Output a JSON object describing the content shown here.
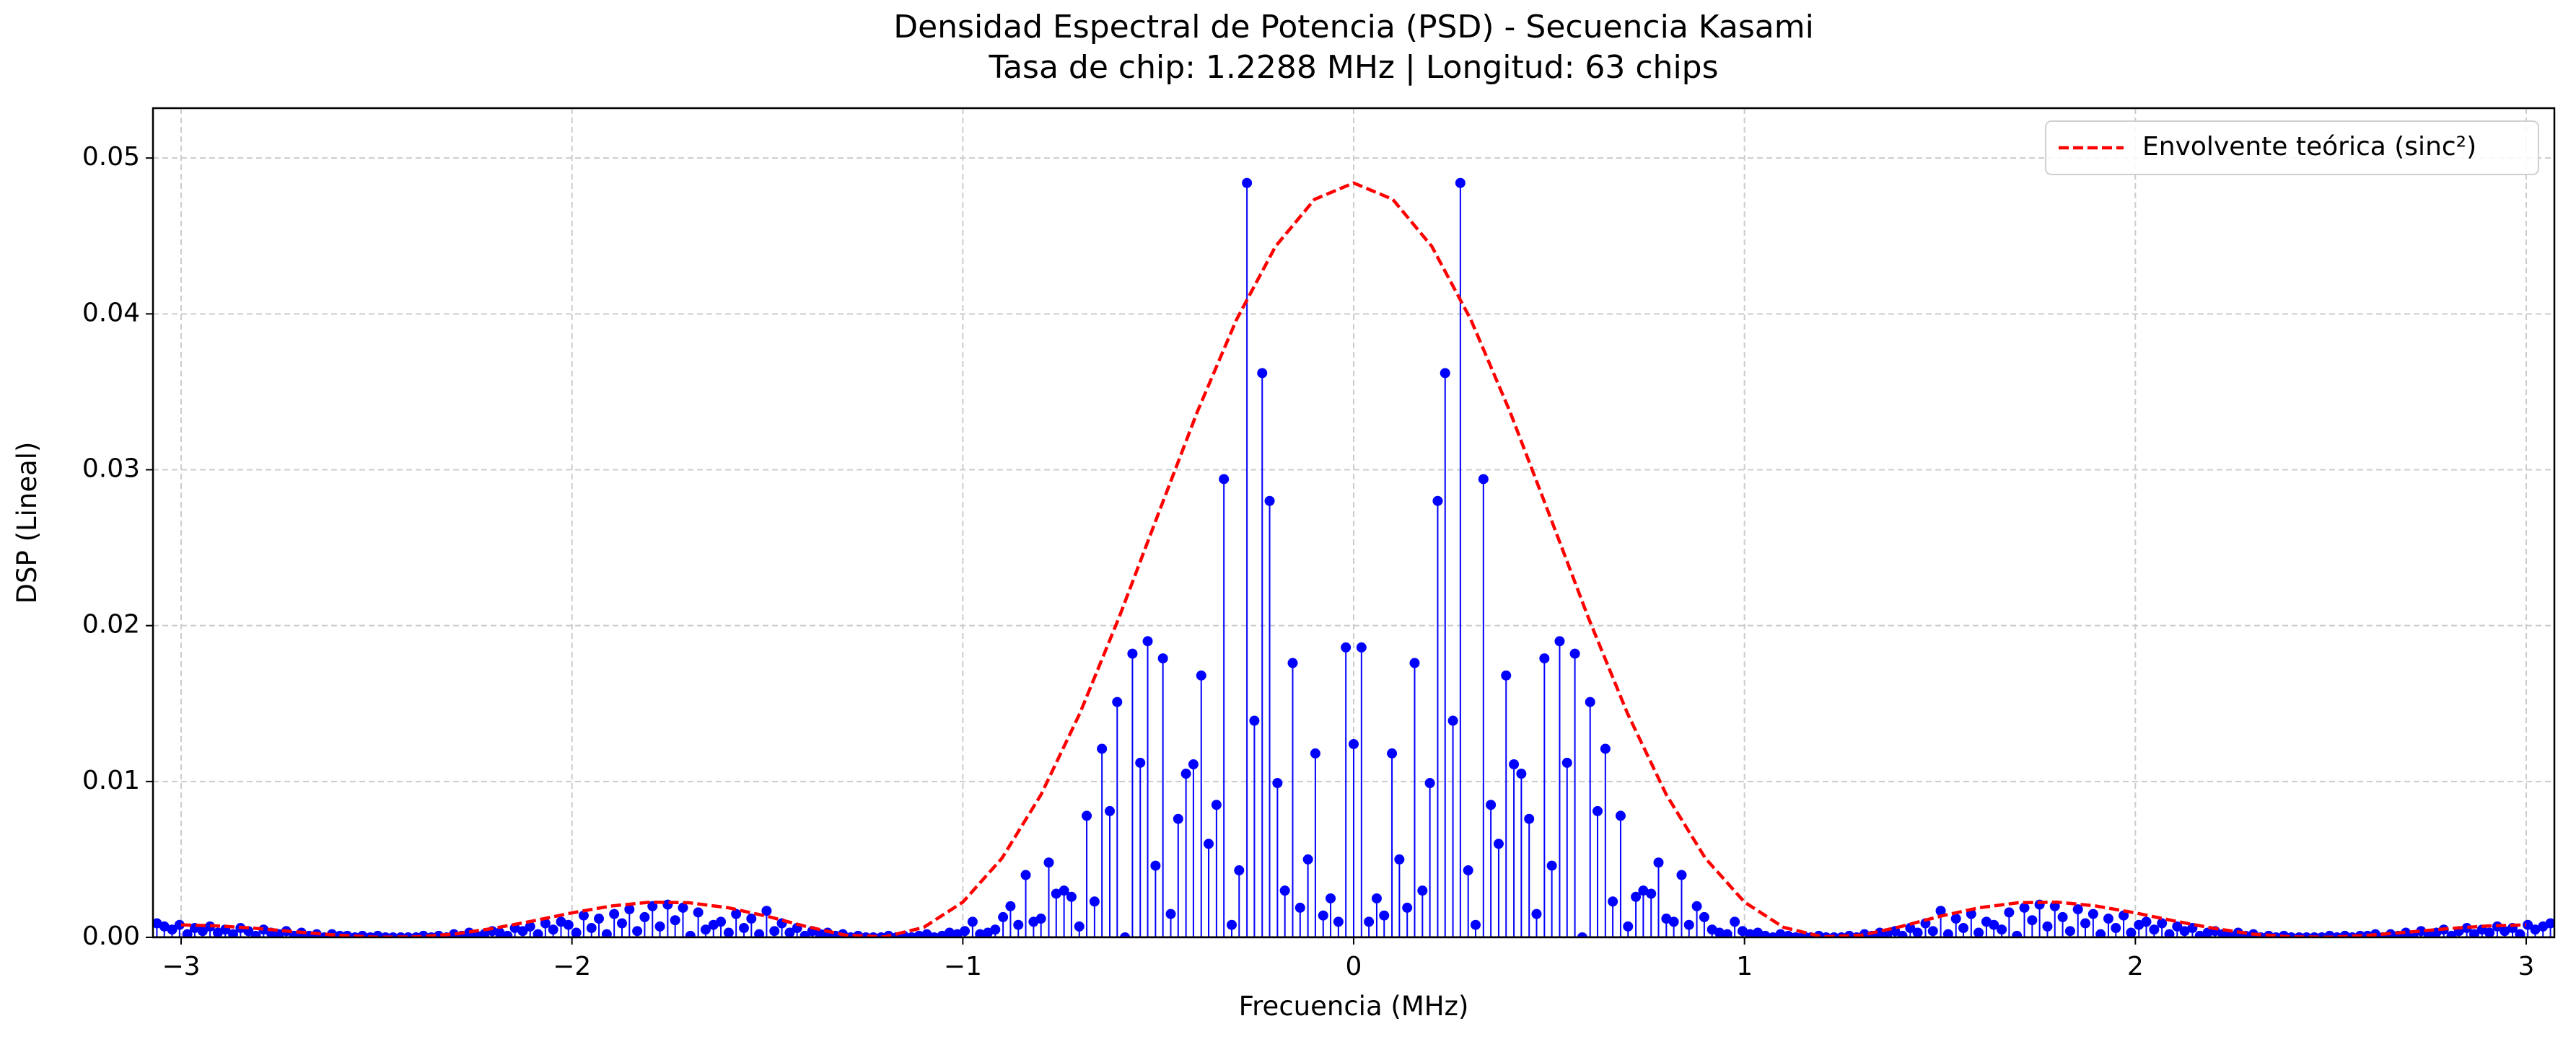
{
  "chart_data": {
    "type": "stem",
    "title": "Densidad Espectral de Potencia (PSD) - Secuencia Kasami",
    "subtitle": "Tasa de chip: 1.2288 MHz | Longitud: 63 chips",
    "x_label": "Frecuencia (MHz)",
    "y_label": "DSP (Lineal)",
    "xlim": [
      -3.072,
      3.072
    ],
    "ylim": [
      0,
      0.0532
    ],
    "xticks": [
      {
        "value": -3,
        "label": "−3"
      },
      {
        "value": -2,
        "label": "−2"
      },
      {
        "value": -1,
        "label": "−1"
      },
      0,
      1,
      2,
      3
    ],
    "yticks": [
      {
        "value": 0,
        "label": "0.00"
      },
      0.01,
      0.02,
      0.03,
      0.04,
      0.05
    ],
    "grid": true,
    "legend_location": "upper right",
    "series": [
      {
        "type": "stem",
        "color": "#0000ff",
        "x": [
          -3.062,
          -3.043,
          -3.023,
          -3.004,
          -2.984,
          -2.965,
          -2.945,
          -2.926,
          -2.906,
          -2.887,
          -2.867,
          -2.848,
          -2.828,
          -2.809,
          -2.789,
          -2.77,
          -2.75,
          -2.731,
          -2.711,
          -2.692,
          -2.672,
          -2.653,
          -2.633,
          -2.614,
          -2.594,
          -2.575,
          -2.555,
          -2.536,
          -2.516,
          -2.497,
          -2.477,
          -2.458,
          -2.438,
          -2.419,
          -2.399,
          -2.38,
          -2.36,
          -2.341,
          -2.321,
          -2.302,
          -2.282,
          -2.263,
          -2.243,
          -2.224,
          -2.204,
          -2.185,
          -2.165,
          -2.146,
          -2.126,
          -2.107,
          -2.087,
          -2.068,
          -2.048,
          -2.028,
          -2.009,
          -1.989,
          -1.97,
          -1.95,
          -1.931,
          -1.911,
          -1.892,
          -1.872,
          -1.853,
          -1.833,
          -1.814,
          -1.794,
          -1.775,
          -1.755,
          -1.736,
          -1.716,
          -1.697,
          -1.677,
          -1.658,
          -1.638,
          -1.619,
          -1.599,
          -1.58,
          -1.56,
          -1.541,
          -1.521,
          -1.502,
          -1.482,
          -1.463,
          -1.443,
          -1.424,
          -1.404,
          -1.385,
          -1.365,
          -1.346,
          -1.326,
          -1.307,
          -1.287,
          -1.268,
          -1.248,
          -1.229,
          -1.209,
          -1.19,
          -1.17,
          -1.151,
          -1.131,
          -1.112,
          -1.092,
          -1.073,
          -1.053,
          -1.034,
          -1.014,
          -0.995,
          -0.975,
          -0.956,
          -0.936,
          -0.917,
          -0.897,
          -0.878,
          -0.858,
          -0.839,
          -0.819,
          -0.8,
          -0.78,
          -0.761,
          -0.741,
          -0.722,
          -0.702,
          -0.683,
          -0.663,
          -0.644,
          -0.624,
          -0.605,
          -0.585,
          -0.566,
          -0.546,
          -0.527,
          -0.507,
          -0.488,
          -0.468,
          -0.449,
          -0.429,
          -0.41,
          -0.39,
          -0.371,
          -0.351,
          -0.332,
          -0.312,
          -0.293,
          -0.273,
          -0.254,
          -0.234,
          -0.215,
          -0.195,
          -0.176,
          -0.156,
          -0.137,
          -0.117,
          -0.098,
          -0.078,
          -0.059,
          -0.039,
          -0.02,
          0,
          0.02,
          0.039,
          0.059,
          0.078,
          0.098,
          0.117,
          0.137,
          0.156,
          0.176,
          0.195,
          0.215,
          0.234,
          0.254,
          0.273,
          0.293,
          0.312,
          0.332,
          0.351,
          0.371,
          0.39,
          0.41,
          0.429,
          0.449,
          0.468,
          0.488,
          0.507,
          0.527,
          0.546,
          0.566,
          0.585,
          0.605,
          0.624,
          0.644,
          0.663,
          0.683,
          0.702,
          0.722,
          0.741,
          0.761,
          0.78,
          0.8,
          0.819,
          0.839,
          0.858,
          0.878,
          0.897,
          0.917,
          0.936,
          0.956,
          0.975,
          0.995,
          1.014,
          1.034,
          1.053,
          1.073,
          1.092,
          1.112,
          1.131,
          1.151,
          1.17,
          1.19,
          1.209,
          1.229,
          1.248,
          1.268,
          1.287,
          1.307,
          1.326,
          1.346,
          1.365,
          1.385,
          1.404,
          1.424,
          1.443,
          1.463,
          1.482,
          1.502,
          1.521,
          1.541,
          1.56,
          1.58,
          1.599,
          1.619,
          1.638,
          1.658,
          1.677,
          1.697,
          1.716,
          1.736,
          1.755,
          1.775,
          1.794,
          1.814,
          1.833,
          1.853,
          1.872,
          1.892,
          1.911,
          1.931,
          1.95,
          1.97,
          1.989,
          2.009,
          2.028,
          2.048,
          2.068,
          2.087,
          2.107,
          2.126,
          2.146,
          2.165,
          2.185,
          2.204,
          2.224,
          2.243,
          2.263,
          2.282,
          2.302,
          2.321,
          2.341,
          2.36,
          2.38,
          2.399,
          2.419,
          2.438,
          2.458,
          2.477,
          2.497,
          2.516,
          2.536,
          2.555,
          2.575,
          2.594,
          2.614,
          2.633,
          2.653,
          2.672,
          2.692,
          2.711,
          2.731,
          2.75,
          2.77,
          2.789,
          2.809,
          2.828,
          2.848,
          2.867,
          2.887,
          2.906,
          2.926,
          2.945,
          2.965,
          2.984,
          3.004,
          3.023,
          3.043,
          3.062
        ],
        "values": [
          0.0009,
          0.0007,
          0.0005,
          0.0008,
          0.0002,
          0.0006,
          0.0004,
          0.0007,
          0.0003,
          0.0005,
          0.0002,
          0.0006,
          0.0004,
          0.0001,
          0.0005,
          0.0003,
          0.0002,
          0.0004,
          0.0001,
          0.0003,
          0.0001,
          0.0002,
          0,
          0.0002,
          0.0001,
          0.0001,
          0,
          0.0001,
          0,
          0.0001,
          0,
          0,
          0,
          0,
          0,
          0.0001,
          0,
          0.0001,
          0,
          0.0002,
          0.0001,
          0.0003,
          0.0001,
          0.0002,
          0.0004,
          0.0003,
          0.0001,
          0.0006,
          0.0004,
          0.0007,
          0.0002,
          0.0009,
          0.0005,
          0.001,
          0.0008,
          0.0003,
          0.0014,
          0.0006,
          0.0012,
          0.0002,
          0.0015,
          0.0009,
          0.0018,
          0.0004,
          0.0013,
          0.002,
          0.0007,
          0.0021,
          0.0011,
          0.0019,
          0.0001,
          0.0016,
          0.0005,
          0.0008,
          0.001,
          0.0003,
          0.0015,
          0.0006,
          0.0012,
          0.0002,
          0.0017,
          0.0004,
          0.0009,
          0.0003,
          0.0006,
          0.0001,
          0.0004,
          0.0002,
          0.0003,
          0.0001,
          0.0002,
          0,
          0.0001,
          0,
          0,
          0,
          0.0001,
          0,
          0.0001,
          0,
          0.0001,
          0.0002,
          0,
          0.0001,
          0.0003,
          0.0002,
          0.0004,
          0.001,
          0.0002,
          0.0003,
          0.0005,
          0.0013,
          0.002,
          0.0008,
          0.004,
          0.001,
          0.0012,
          0.0048,
          0.0028,
          0.003,
          0.0026,
          0.0007,
          0.0078,
          0.0023,
          0.0121,
          0.0081,
          0.0151,
          0,
          0.0182,
          0.0112,
          0.019,
          0.0046,
          0.0179,
          0.0015,
          0.0076,
          0.0105,
          0.0111,
          0.0168,
          0.006,
          0.0085,
          0.0294,
          0.0008,
          0.0043,
          0.0484,
          0.0139,
          0.0362,
          0.028,
          0.0099,
          0.003,
          0.0176,
          0.0019,
          0.005,
          0.0118,
          0.0014,
          0.0025,
          0.001,
          0.0186,
          0.0124,
          0.0186,
          0.001,
          0.0025,
          0.0014,
          0.0118,
          0.005,
          0.0019,
          0.0176,
          0.003,
          0.0099,
          0.028,
          0.0362,
          0.0139,
          0.0484,
          0.0043,
          0.0008,
          0.0294,
          0.0085,
          0.006,
          0.0168,
          0.0111,
          0.0105,
          0.0076,
          0.0015,
          0.0179,
          0.0046,
          0.019,
          0.0112,
          0.0182,
          0,
          0.0151,
          0.0081,
          0.0121,
          0.0023,
          0.0078,
          0.0007,
          0.0026,
          0.003,
          0.0028,
          0.0048,
          0.0012,
          0.001,
          0.004,
          0.0008,
          0.002,
          0.0013,
          0.0005,
          0.0003,
          0.0002,
          0.001,
          0.0004,
          0.0002,
          0.0003,
          0.0001,
          0,
          0.0002,
          0.0001,
          0,
          0.0001,
          0,
          0.0001,
          0,
          0,
          0,
          0.0001,
          0,
          0.0002,
          0.0001,
          0.0003,
          0.0002,
          0.0004,
          0.0001,
          0.0006,
          0.0003,
          0.0009,
          0.0004,
          0.0017,
          0.0002,
          0.0012,
          0.0006,
          0.0015,
          0.0003,
          0.001,
          0.0008,
          0.0005,
          0.0016,
          0.0001,
          0.0019,
          0.0011,
          0.0021,
          0.0007,
          0.002,
          0.0013,
          0.0004,
          0.0018,
          0.0009,
          0.0015,
          0.0002,
          0.0012,
          0.0006,
          0.0014,
          0.0003,
          0.0008,
          0.001,
          0.0005,
          0.0009,
          0.0002,
          0.0007,
          0.0004,
          0.0006,
          0.0001,
          0.0003,
          0.0004,
          0.0002,
          0.0001,
          0.0003,
          0.0001,
          0.0002,
          0,
          0.0001,
          0,
          0.0001,
          0,
          0,
          0,
          0,
          0,
          0.0001,
          0,
          0.0001,
          0,
          0.0001,
          0.0001,
          0.0002,
          0,
          0.0002,
          0.0001,
          0.0003,
          0.0001,
          0.0004,
          0.0002,
          0.0003,
          0.0005,
          0.0001,
          0.0004,
          0.0006,
          0.0002,
          0.0005,
          0.0003,
          0.0007,
          0.0004,
          0.0006,
          0.0002,
          0.0008,
          0.0005,
          0.0007,
          0.0009
        ]
      },
      {
        "type": "line",
        "name": "Envolvente teórica (sinc²)",
        "color": "#ff0000",
        "linestyle": "dashed",
        "x": [
          -3.0,
          -2.9,
          -2.8,
          -2.7,
          -2.6,
          -2.5,
          -2.4,
          -2.3,
          -2.2,
          -2.1,
          -2.0,
          -1.9,
          -1.8,
          -1.7,
          -1.6,
          -1.5,
          -1.4,
          -1.3,
          -1.2,
          -1.1,
          -1.0,
          -0.9,
          -0.8,
          -0.7,
          -0.6,
          -0.5,
          -0.4,
          -0.3,
          -0.2,
          -0.1,
          0,
          0.1,
          0.2,
          0.3,
          0.4,
          0.5,
          0.6,
          0.7,
          0.8,
          0.9,
          1.0,
          1.1,
          1.2,
          1.3,
          1.4,
          1.5,
          1.6,
          1.7,
          1.8,
          1.9,
          2.0,
          2.1,
          2.2,
          2.3,
          2.4,
          2.5,
          2.6,
          2.7,
          2.8,
          2.9,
          3.0
        ],
        "values": [
          0.0008,
          0.00073,
          0.00056,
          0.00034,
          0.00014,
          1e-05,
          3e-05,
          0.00021,
          0.00058,
          0.00105,
          0.00157,
          0.00201,
          0.00226,
          0.00222,
          0.0019,
          0.00135,
          0.00069,
          0.00014,
          3e-05,
          0.00064,
          0.00226,
          0.00507,
          0.00915,
          0.0144,
          0.02054,
          0.02716,
          0.03372,
          0.03962,
          0.04433,
          0.04735,
          0.0484,
          0.04735,
          0.04433,
          0.03962,
          0.03372,
          0.02716,
          0.02054,
          0.0144,
          0.00915,
          0.00507,
          0.00226,
          0.00064,
          3e-05,
          0.00014,
          0.00069,
          0.00135,
          0.0019,
          0.00222,
          0.00226,
          0.00201,
          0.00157,
          0.00105,
          0.00058,
          0.00021,
          3e-05,
          1e-05,
          0.00014,
          0.00034,
          0.00056,
          0.00073,
          0.0008
        ]
      }
    ]
  }
}
